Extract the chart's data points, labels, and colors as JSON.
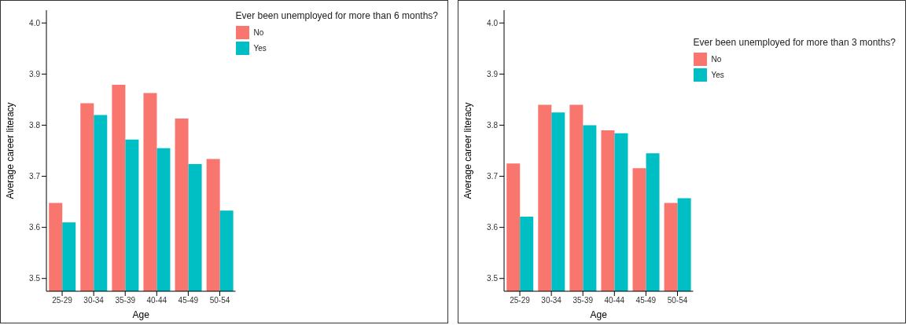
{
  "chart_data": [
    {
      "type": "bar",
      "xlabel": "Age",
      "ylabel": "Average career literacy",
      "legend_title": "Ever been unemployed for more than 6 months?",
      "categories": [
        "25-29",
        "30-34",
        "35-39",
        "40-44",
        "45-49",
        "50-54"
      ],
      "series": [
        {
          "name": "No",
          "color": "#f8766d",
          "values": [
            3.648,
            3.843,
            3.879,
            3.863,
            3.813,
            3.734
          ]
        },
        {
          "name": "Yes",
          "color": "#00bfc4",
          "values": [
            3.61,
            3.82,
            3.772,
            3.755,
            3.724,
            3.633
          ]
        }
      ],
      "ylim": [
        3.475,
        4.025
      ],
      "yticks": [
        3.5,
        3.6,
        3.7,
        3.8,
        3.9,
        {
          "value": 4.0,
          "label": "4.0"
        }
      ],
      "grid": false,
      "legend": "top right"
    },
    {
      "type": "bar",
      "xlabel": "Age",
      "ylabel": "Average career literacy",
      "legend_title": "Ever been unemployed for more than 3 months?",
      "categories": [
        "25-29",
        "30-34",
        "35-39",
        "40-44",
        "45-49",
        "50-54"
      ],
      "series": [
        {
          "name": "No",
          "color": "#f8766d",
          "values": [
            3.725,
            3.84,
            3.84,
            3.79,
            3.716,
            3.648
          ]
        },
        {
          "name": "Yes",
          "color": "#00bfc4",
          "values": [
            3.621,
            3.825,
            3.8,
            3.784,
            3.745,
            3.657
          ]
        }
      ],
      "ylim": [
        3.475,
        4.025
      ],
      "yticks": [
        3.5,
        3.6,
        3.7,
        3.8,
        3.9,
        {
          "value": 4.0,
          "label": "4.0"
        }
      ],
      "grid": false,
      "legend": "top right"
    }
  ]
}
